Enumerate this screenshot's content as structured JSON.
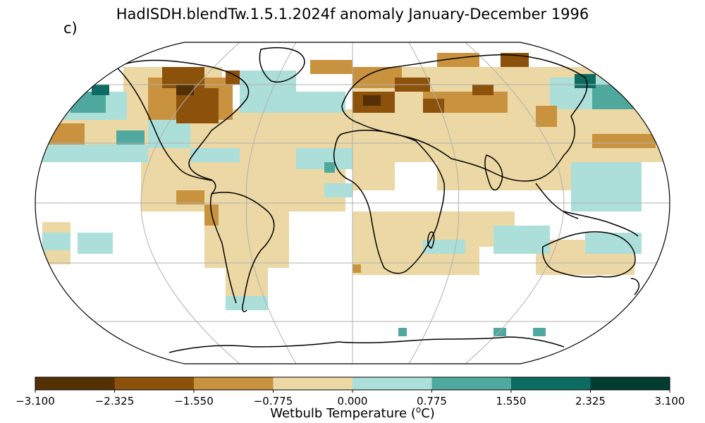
{
  "title": "HadISDH.blendTw.1.5.1.2024f anomaly January-December 1996",
  "panel_label": "c)",
  "colorbar": {
    "label_text": "Wetbulb Temperature (",
    "label_sup": "o",
    "label_unit": "C)",
    "ticks": [
      "−3.100",
      "−2.325",
      "−1.550",
      "−0.775",
      "0.000",
      "0.775",
      "1.550",
      "2.325",
      "3.100"
    ],
    "tick_values": [
      -3.1,
      -2.325,
      -1.55,
      -0.775,
      0.0,
      0.775,
      1.55,
      2.325,
      3.1
    ],
    "colors": [
      "#543005",
      "#8c510a",
      "#c8923e",
      "#ecd8a4",
      "#acdfd9",
      "#4fa99e",
      "#0d6c62",
      "#003c30"
    ]
  },
  "map": {
    "projection": "Robinson",
    "graticule": true,
    "coastlines": true
  }
}
